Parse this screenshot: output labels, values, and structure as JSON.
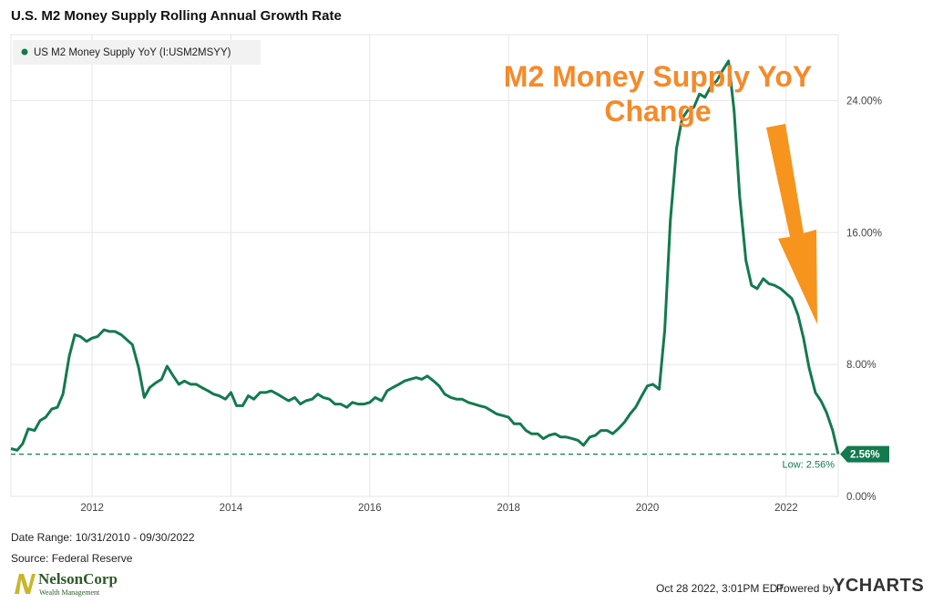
{
  "header": {
    "title": "U.S. M2 Money Supply Rolling Annual Growth Rate"
  },
  "legend": {
    "label": "US M2 Money Supply YoY (I:USM2MSYY)"
  },
  "annotation": {
    "line1": "M2 Money Supply YoY",
    "line2": "Change"
  },
  "badge": {
    "current_value": "2.56%",
    "low_label": "Low: 2.56%"
  },
  "footer": {
    "date_range": "Date Range: 10/31/2010 - 09/30/2022",
    "source": "Source: Federal Reserve",
    "timestamp": "Oct 28 2022, 3:01PM EDT.",
    "powered_by": "Powered by",
    "ycharts_brand": "YCHARTS"
  },
  "logo": {
    "name": "NelsonCorp",
    "sub": "Wealth Management"
  },
  "colors": {
    "line": "#137a4e",
    "arrow": "#f7941d",
    "annotation_text": "#f58a2a",
    "badge": "#137a4e"
  },
  "chart_data": {
    "type": "line",
    "xlim": [
      2010.83,
      2022.75
    ],
    "ylim": [
      0,
      28
    ],
    "x_ticks": [
      2012,
      2014,
      2016,
      2018,
      2020,
      2022
    ],
    "x_tick_labels": [
      "2012",
      "2014",
      "2016",
      "2018",
      "2020",
      "2022"
    ],
    "y_ticks": [
      0,
      8,
      16,
      24
    ],
    "y_tick_labels": [
      "0.00%",
      "8.00%",
      "16.00%",
      "24.00%"
    ],
    "grid": true,
    "legend_position": "top-left",
    "low_line": 2.56,
    "series": [
      {
        "name": "US M2 Money Supply YoY (I:USM2MSYY)",
        "points": [
          [
            2010.83,
            2.9
          ],
          [
            2010.92,
            2.8
          ],
          [
            2011.0,
            3.2
          ],
          [
            2011.08,
            4.1
          ],
          [
            2011.17,
            4.0
          ],
          [
            2011.25,
            4.6
          ],
          [
            2011.33,
            4.8
          ],
          [
            2011.42,
            5.3
          ],
          [
            2011.5,
            5.4
          ],
          [
            2011.58,
            6.2
          ],
          [
            2011.67,
            8.5
          ],
          [
            2011.75,
            9.8
          ],
          [
            2011.83,
            9.7
          ],
          [
            2011.92,
            9.4
          ],
          [
            2012.0,
            9.6
          ],
          [
            2012.08,
            9.7
          ],
          [
            2012.17,
            10.1
          ],
          [
            2012.25,
            10.0
          ],
          [
            2012.33,
            10.0
          ],
          [
            2012.42,
            9.8
          ],
          [
            2012.5,
            9.5
          ],
          [
            2012.58,
            9.2
          ],
          [
            2012.67,
            7.8
          ],
          [
            2012.75,
            6.0
          ],
          [
            2012.83,
            6.6
          ],
          [
            2012.92,
            6.9
          ],
          [
            2013.0,
            7.1
          ],
          [
            2013.08,
            7.9
          ],
          [
            2013.17,
            7.3
          ],
          [
            2013.25,
            6.8
          ],
          [
            2013.33,
            7.0
          ],
          [
            2013.42,
            6.8
          ],
          [
            2013.5,
            6.8
          ],
          [
            2013.58,
            6.6
          ],
          [
            2013.67,
            6.4
          ],
          [
            2013.75,
            6.2
          ],
          [
            2013.83,
            6.1
          ],
          [
            2013.92,
            5.9
          ],
          [
            2014.0,
            6.3
          ],
          [
            2014.08,
            5.5
          ],
          [
            2014.17,
            5.5
          ],
          [
            2014.25,
            6.1
          ],
          [
            2014.33,
            5.9
          ],
          [
            2014.42,
            6.3
          ],
          [
            2014.5,
            6.3
          ],
          [
            2014.58,
            6.4
          ],
          [
            2014.67,
            6.2
          ],
          [
            2014.75,
            6.0
          ],
          [
            2014.83,
            5.8
          ],
          [
            2014.92,
            6.0
          ],
          [
            2015.0,
            5.6
          ],
          [
            2015.08,
            5.8
          ],
          [
            2015.17,
            5.9
          ],
          [
            2015.25,
            6.2
          ],
          [
            2015.33,
            6.0
          ],
          [
            2015.42,
            5.9
          ],
          [
            2015.5,
            5.6
          ],
          [
            2015.58,
            5.6
          ],
          [
            2015.67,
            5.4
          ],
          [
            2015.75,
            5.7
          ],
          [
            2015.83,
            5.6
          ],
          [
            2015.92,
            5.6
          ],
          [
            2016.0,
            5.7
          ],
          [
            2016.08,
            6.0
          ],
          [
            2016.17,
            5.8
          ],
          [
            2016.25,
            6.4
          ],
          [
            2016.33,
            6.6
          ],
          [
            2016.42,
            6.8
          ],
          [
            2016.5,
            7.0
          ],
          [
            2016.58,
            7.1
          ],
          [
            2016.67,
            7.2
          ],
          [
            2016.75,
            7.1
          ],
          [
            2016.83,
            7.3
          ],
          [
            2016.92,
            7.0
          ],
          [
            2017.0,
            6.7
          ],
          [
            2017.08,
            6.2
          ],
          [
            2017.17,
            6.0
          ],
          [
            2017.25,
            5.9
          ],
          [
            2017.33,
            5.9
          ],
          [
            2017.42,
            5.7
          ],
          [
            2017.5,
            5.6
          ],
          [
            2017.58,
            5.5
          ],
          [
            2017.67,
            5.4
          ],
          [
            2017.75,
            5.2
          ],
          [
            2017.83,
            5.0
          ],
          [
            2017.92,
            4.9
          ],
          [
            2018.0,
            4.8
          ],
          [
            2018.08,
            4.4
          ],
          [
            2018.17,
            4.4
          ],
          [
            2018.25,
            4.0
          ],
          [
            2018.33,
            3.8
          ],
          [
            2018.42,
            3.8
          ],
          [
            2018.5,
            3.5
          ],
          [
            2018.58,
            3.7
          ],
          [
            2018.67,
            3.8
          ],
          [
            2018.75,
            3.6
          ],
          [
            2018.83,
            3.6
          ],
          [
            2018.92,
            3.5
          ],
          [
            2019.0,
            3.4
          ],
          [
            2019.08,
            3.1
          ],
          [
            2019.17,
            3.6
          ],
          [
            2019.25,
            3.7
          ],
          [
            2019.33,
            4.0
          ],
          [
            2019.42,
            4.0
          ],
          [
            2019.5,
            3.8
          ],
          [
            2019.58,
            4.1
          ],
          [
            2019.67,
            4.5
          ],
          [
            2019.75,
            5.0
          ],
          [
            2019.83,
            5.4
          ],
          [
            2019.92,
            6.1
          ],
          [
            2020.0,
            6.7
          ],
          [
            2020.08,
            6.8
          ],
          [
            2020.17,
            6.5
          ],
          [
            2020.25,
            10.1
          ],
          [
            2020.33,
            16.7
          ],
          [
            2020.42,
            21.1
          ],
          [
            2020.5,
            22.9
          ],
          [
            2020.58,
            23.4
          ],
          [
            2020.67,
            23.6
          ],
          [
            2020.75,
            24.4
          ],
          [
            2020.83,
            24.2
          ],
          [
            2020.92,
            24.9
          ],
          [
            2021.0,
            25.2
          ],
          [
            2021.08,
            25.8
          ],
          [
            2021.17,
            26.4
          ],
          [
            2021.25,
            23.4
          ],
          [
            2021.33,
            18.2
          ],
          [
            2021.42,
            14.3
          ],
          [
            2021.5,
            12.8
          ],
          [
            2021.58,
            12.6
          ],
          [
            2021.67,
            13.2
          ],
          [
            2021.75,
            12.9
          ],
          [
            2021.83,
            12.8
          ],
          [
            2021.92,
            12.6
          ],
          [
            2022.0,
            12.3
          ],
          [
            2022.08,
            12.0
          ],
          [
            2022.17,
            11.0
          ],
          [
            2022.25,
            9.6
          ],
          [
            2022.33,
            7.8
          ],
          [
            2022.42,
            6.3
          ],
          [
            2022.5,
            5.8
          ],
          [
            2022.58,
            5.1
          ],
          [
            2022.67,
            4.0
          ],
          [
            2022.75,
            2.56
          ]
        ]
      }
    ]
  }
}
